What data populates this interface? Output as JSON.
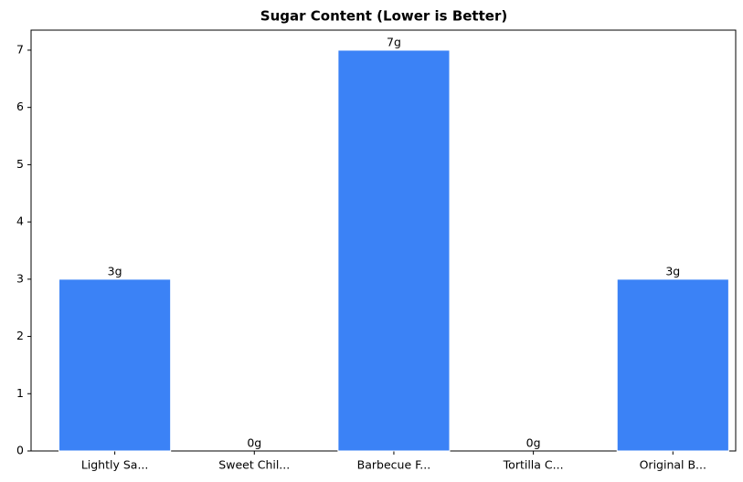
{
  "chart_data": {
    "type": "bar",
    "title": "Sugar Content (Lower is Better)",
    "categories": [
      "Lightly Sa...",
      "Sweet Chil...",
      "Barbecue F...",
      "Tortilla C...",
      "Original B..."
    ],
    "values": [
      3,
      0,
      7,
      0,
      3
    ],
    "value_labels": [
      "3g",
      "0g",
      "7g",
      "0g",
      "3g"
    ],
    "color": "#3b82f6",
    "ylim": [
      0,
      7.35
    ],
    "yticks": [
      0,
      1,
      2,
      3,
      4,
      5,
      6,
      7
    ],
    "grid": false
  }
}
